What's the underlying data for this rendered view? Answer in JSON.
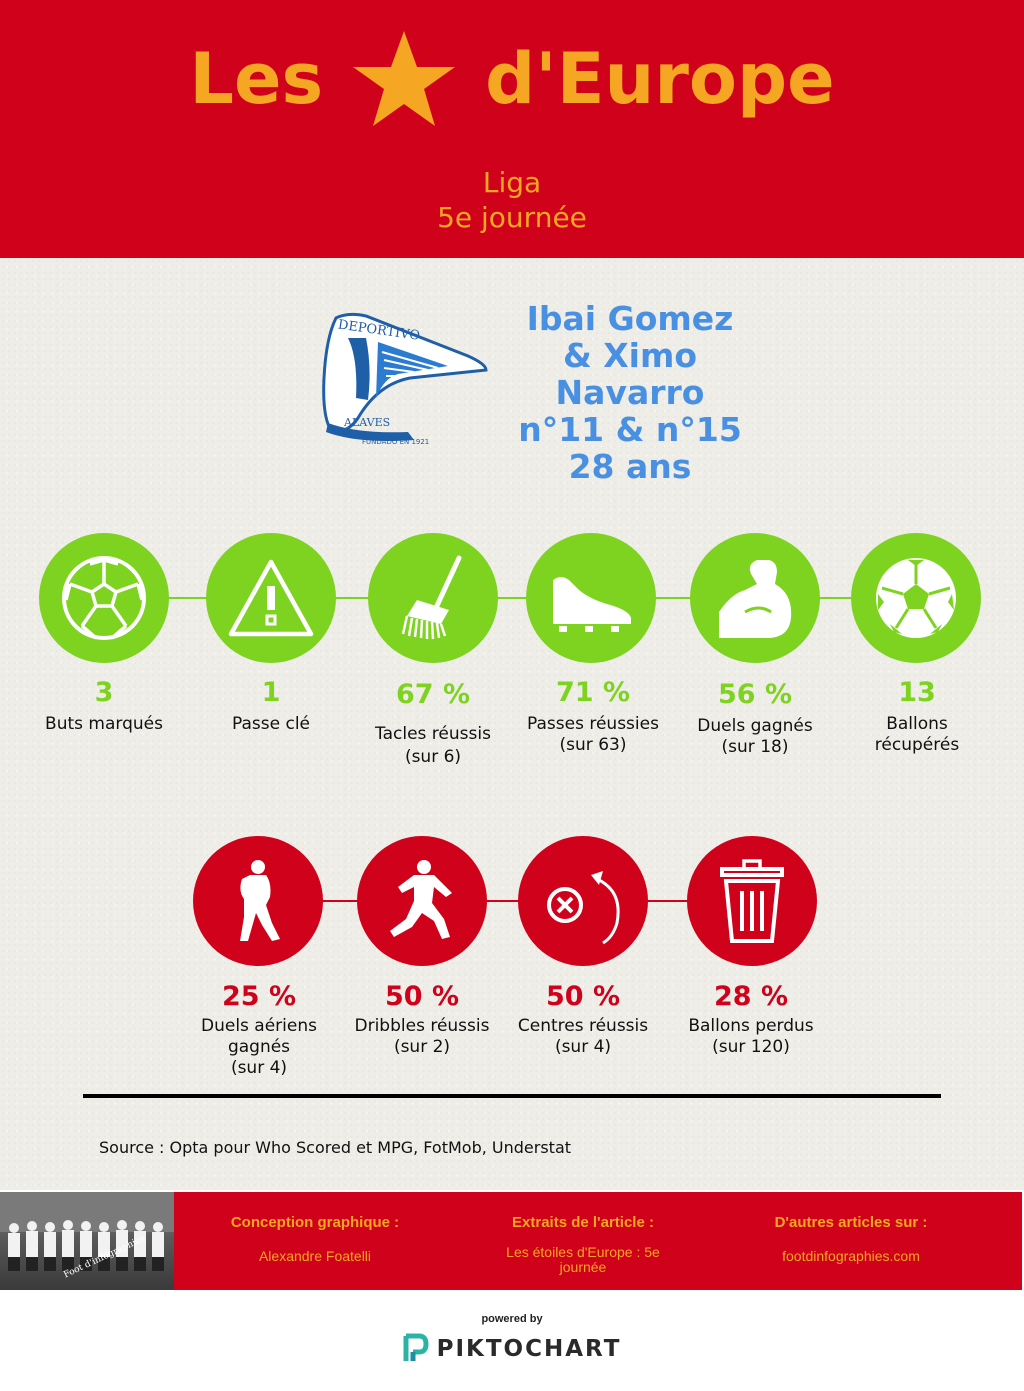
{
  "header": {
    "title_left": "Les",
    "title_right": "d'Europe",
    "star_icon": "star-icon",
    "league": "Liga",
    "round": "5e journée",
    "colors": {
      "background": "#d0021b",
      "text": "#f5a623"
    }
  },
  "club_logo": {
    "icon": "deportivo-alaves-crest",
    "text_top": "DEPORTIVO",
    "text_bottom": "ALAVES",
    "text_founded": "FUNDADO EN 1921"
  },
  "player": {
    "line1": "Ibai Gomez",
    "line2": "& Ximo",
    "line3": "Navarro",
    "line4": "n°11 & n°15",
    "line5": "28 ans",
    "color": "#4a90e2"
  },
  "stats_positive": [
    {
      "icon": "ball-icon",
      "value": "3",
      "label_line1": "Buts marqués",
      "label_line2": ""
    },
    {
      "icon": "warning-icon",
      "value": "1",
      "label_line1": "Passe clé",
      "label_line2": ""
    },
    {
      "icon": "rake-icon",
      "value": "67 %",
      "label_line1": "Tacles réussis",
      "label_line2": "(sur 6)"
    },
    {
      "icon": "boot-icon",
      "value": "71 %",
      "label_line1": "Passes réussies",
      "label_line2": "(sur 63)"
    },
    {
      "icon": "muscle-arm-icon",
      "value": "56 %",
      "label_line1": "Duels gagnés",
      "label_line2": "(sur 18)"
    },
    {
      "icon": "soccer-ball-icon",
      "value": "13",
      "label_line1": "Ballons",
      "label_line2": "récupérés"
    }
  ],
  "stats_negative": [
    {
      "icon": "player-header-icon",
      "value": "25 %",
      "label_line1": "Duels aériens",
      "label_line2": "gagnés",
      "label_line3": "(sur 4)"
    },
    {
      "icon": "player-dribble-icon",
      "value": "50 %",
      "label_line1": "Dribbles réussis",
      "label_line2": "(sur 2)",
      "label_line3": ""
    },
    {
      "icon": "cross-arrow-icon",
      "value": "50 %",
      "label_line1": "Centres réussis",
      "label_line2": "(sur 4)",
      "label_line3": ""
    },
    {
      "icon": "trash-icon",
      "value": "28 %",
      "label_line1": "Ballons perdus",
      "label_line2": "(sur 120)",
      "label_line3": ""
    }
  ],
  "colors": {
    "positive": "#7ed321",
    "negative": "#d0021b",
    "background": "#efede7"
  },
  "source": "Source : Opta pour Who Scored et MPG, FotMob, Understat",
  "credits": {
    "design_heading": "Conception graphique :",
    "design_value": "Alexandre Foatelli",
    "excerpts_heading": "Extraits de l'article :",
    "excerpts_value": "Les étoiles d'Europe : 5e journée",
    "more_heading": "D'autres articles sur :",
    "more_value": "footdinfographies.com"
  },
  "footer_photo": {
    "caption": "Foot d'infographies"
  },
  "powered": {
    "label": "powered by",
    "brand": "PIKTOCHART",
    "icon": "piktochart-logo-icon"
  }
}
